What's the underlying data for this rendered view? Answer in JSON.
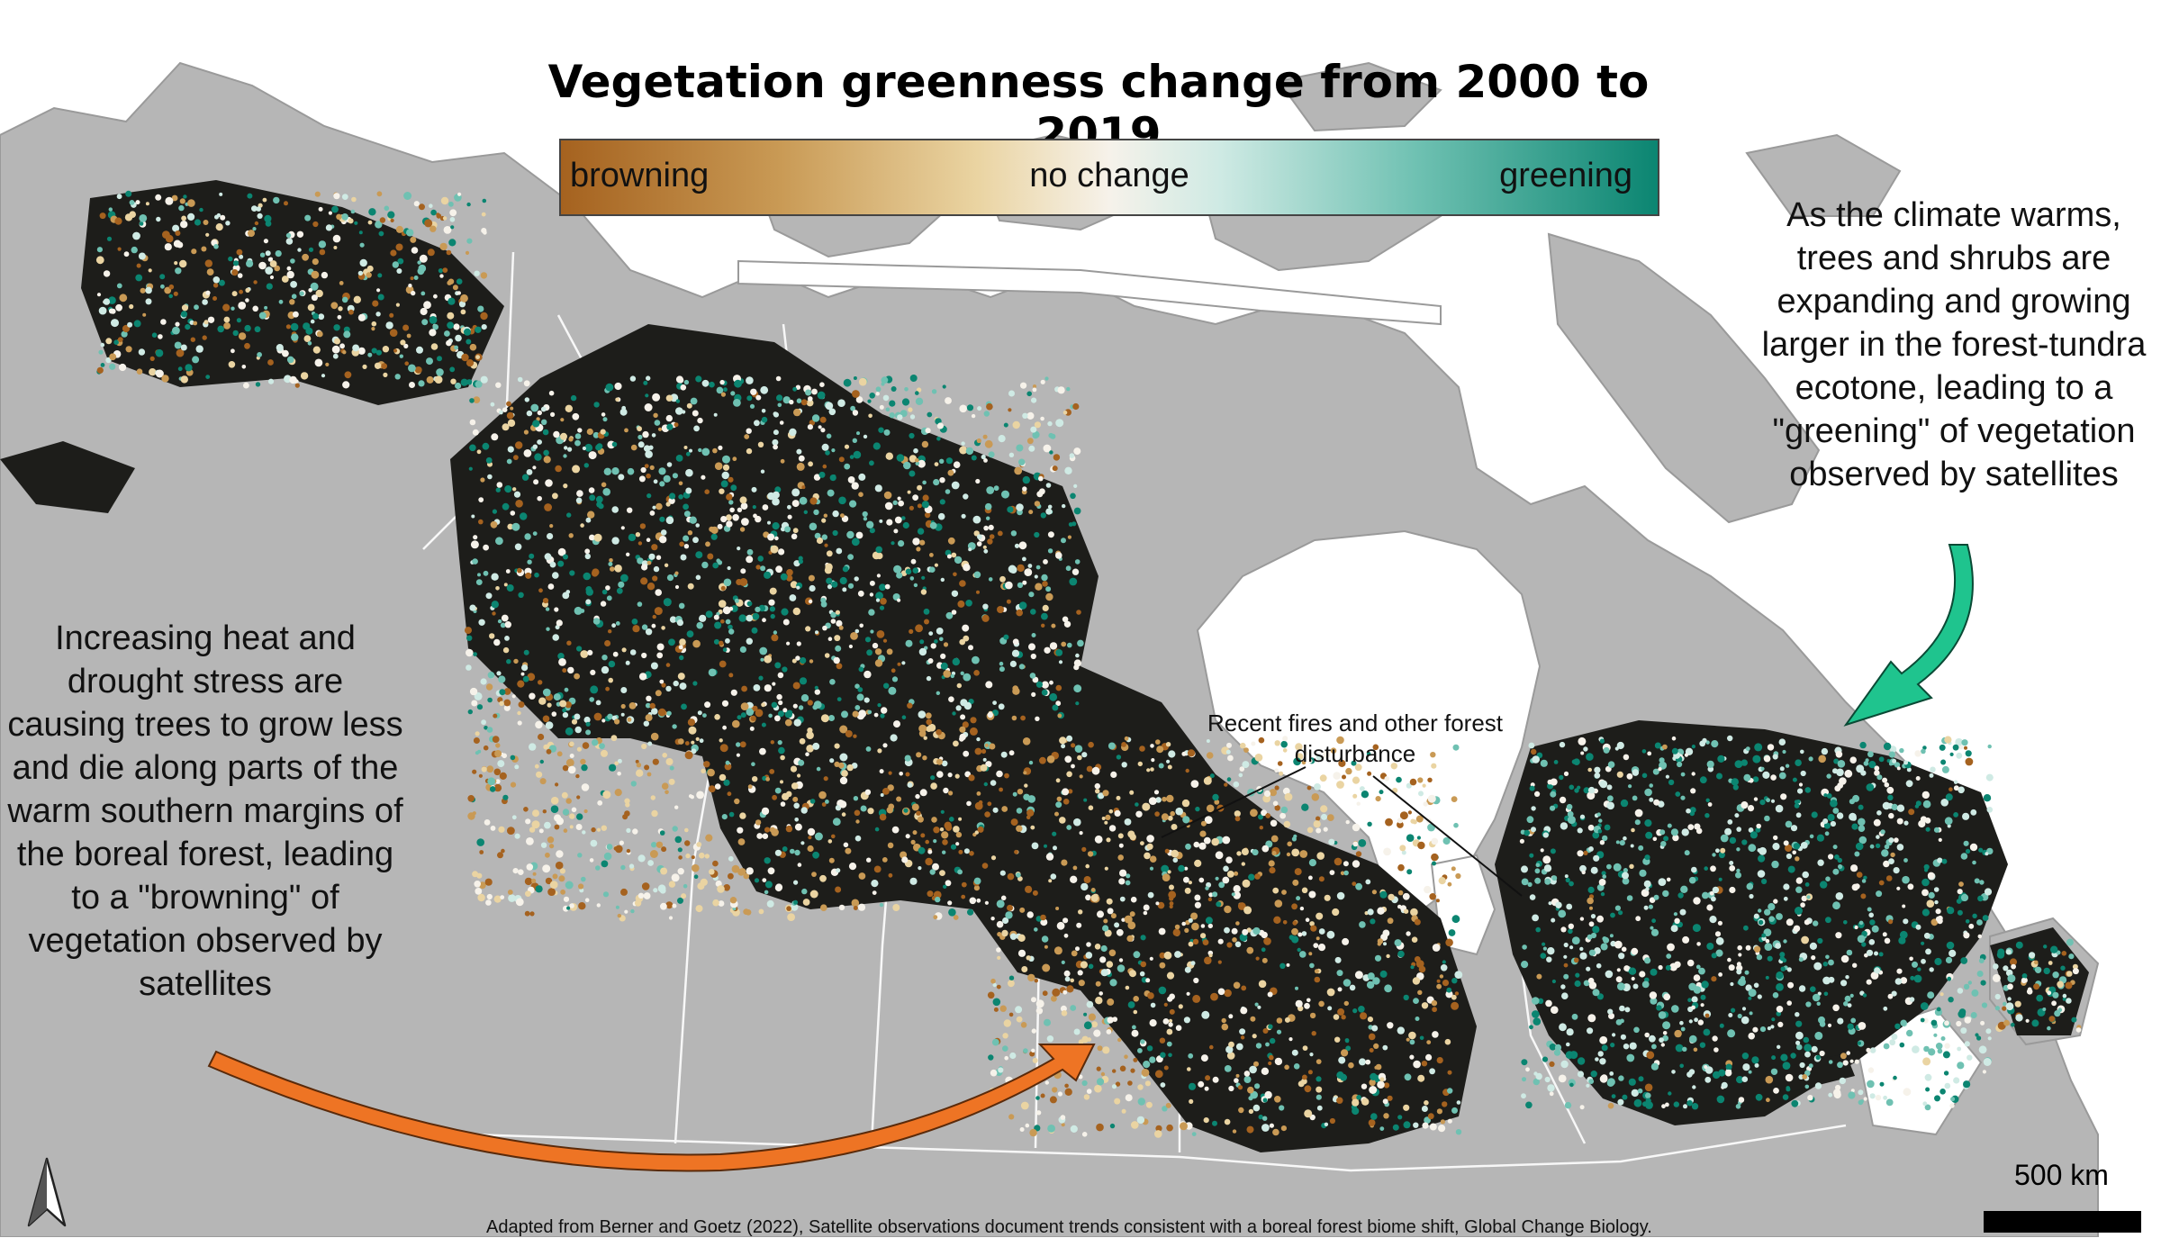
{
  "map": {
    "title": "Vegetation greenness change from 2000 to 2019",
    "legend": {
      "left_label": "browning",
      "center_label": "no change",
      "right_label": "greening",
      "colors": [
        "#a5621f",
        "#c99a55",
        "#ead4a2",
        "#f6f2ea",
        "#cfeae4",
        "#6fc1b2",
        "#0b8571"
      ]
    },
    "annotations": {
      "left": "Increasing heat and drought stress are causing trees to grow less and die along parts of the warm southern margins of the boreal forest, leading to a \"browning\" of vegetation observed by satellites",
      "right": "As the climate warms, trees and shrubs are expanding and growing larger in the forest-tundra ecotone, leading to a \"greening\" of vegetation observed by satellites",
      "fires": "Recent fires and other forest disturbance"
    },
    "arrow_colors": {
      "browning": "#ee7424",
      "greening": "#1fc48e"
    },
    "scale_label": "500 km",
    "credit": "Adapted from Berner and Goetz (2022), Satellite observations document trends consistent with a boreal forest biome shift, Global Change Biology.",
    "base_colors": {
      "land": "#b4b4b4",
      "water": "#ffffff",
      "disturbance": "#0b0b0b"
    }
  }
}
